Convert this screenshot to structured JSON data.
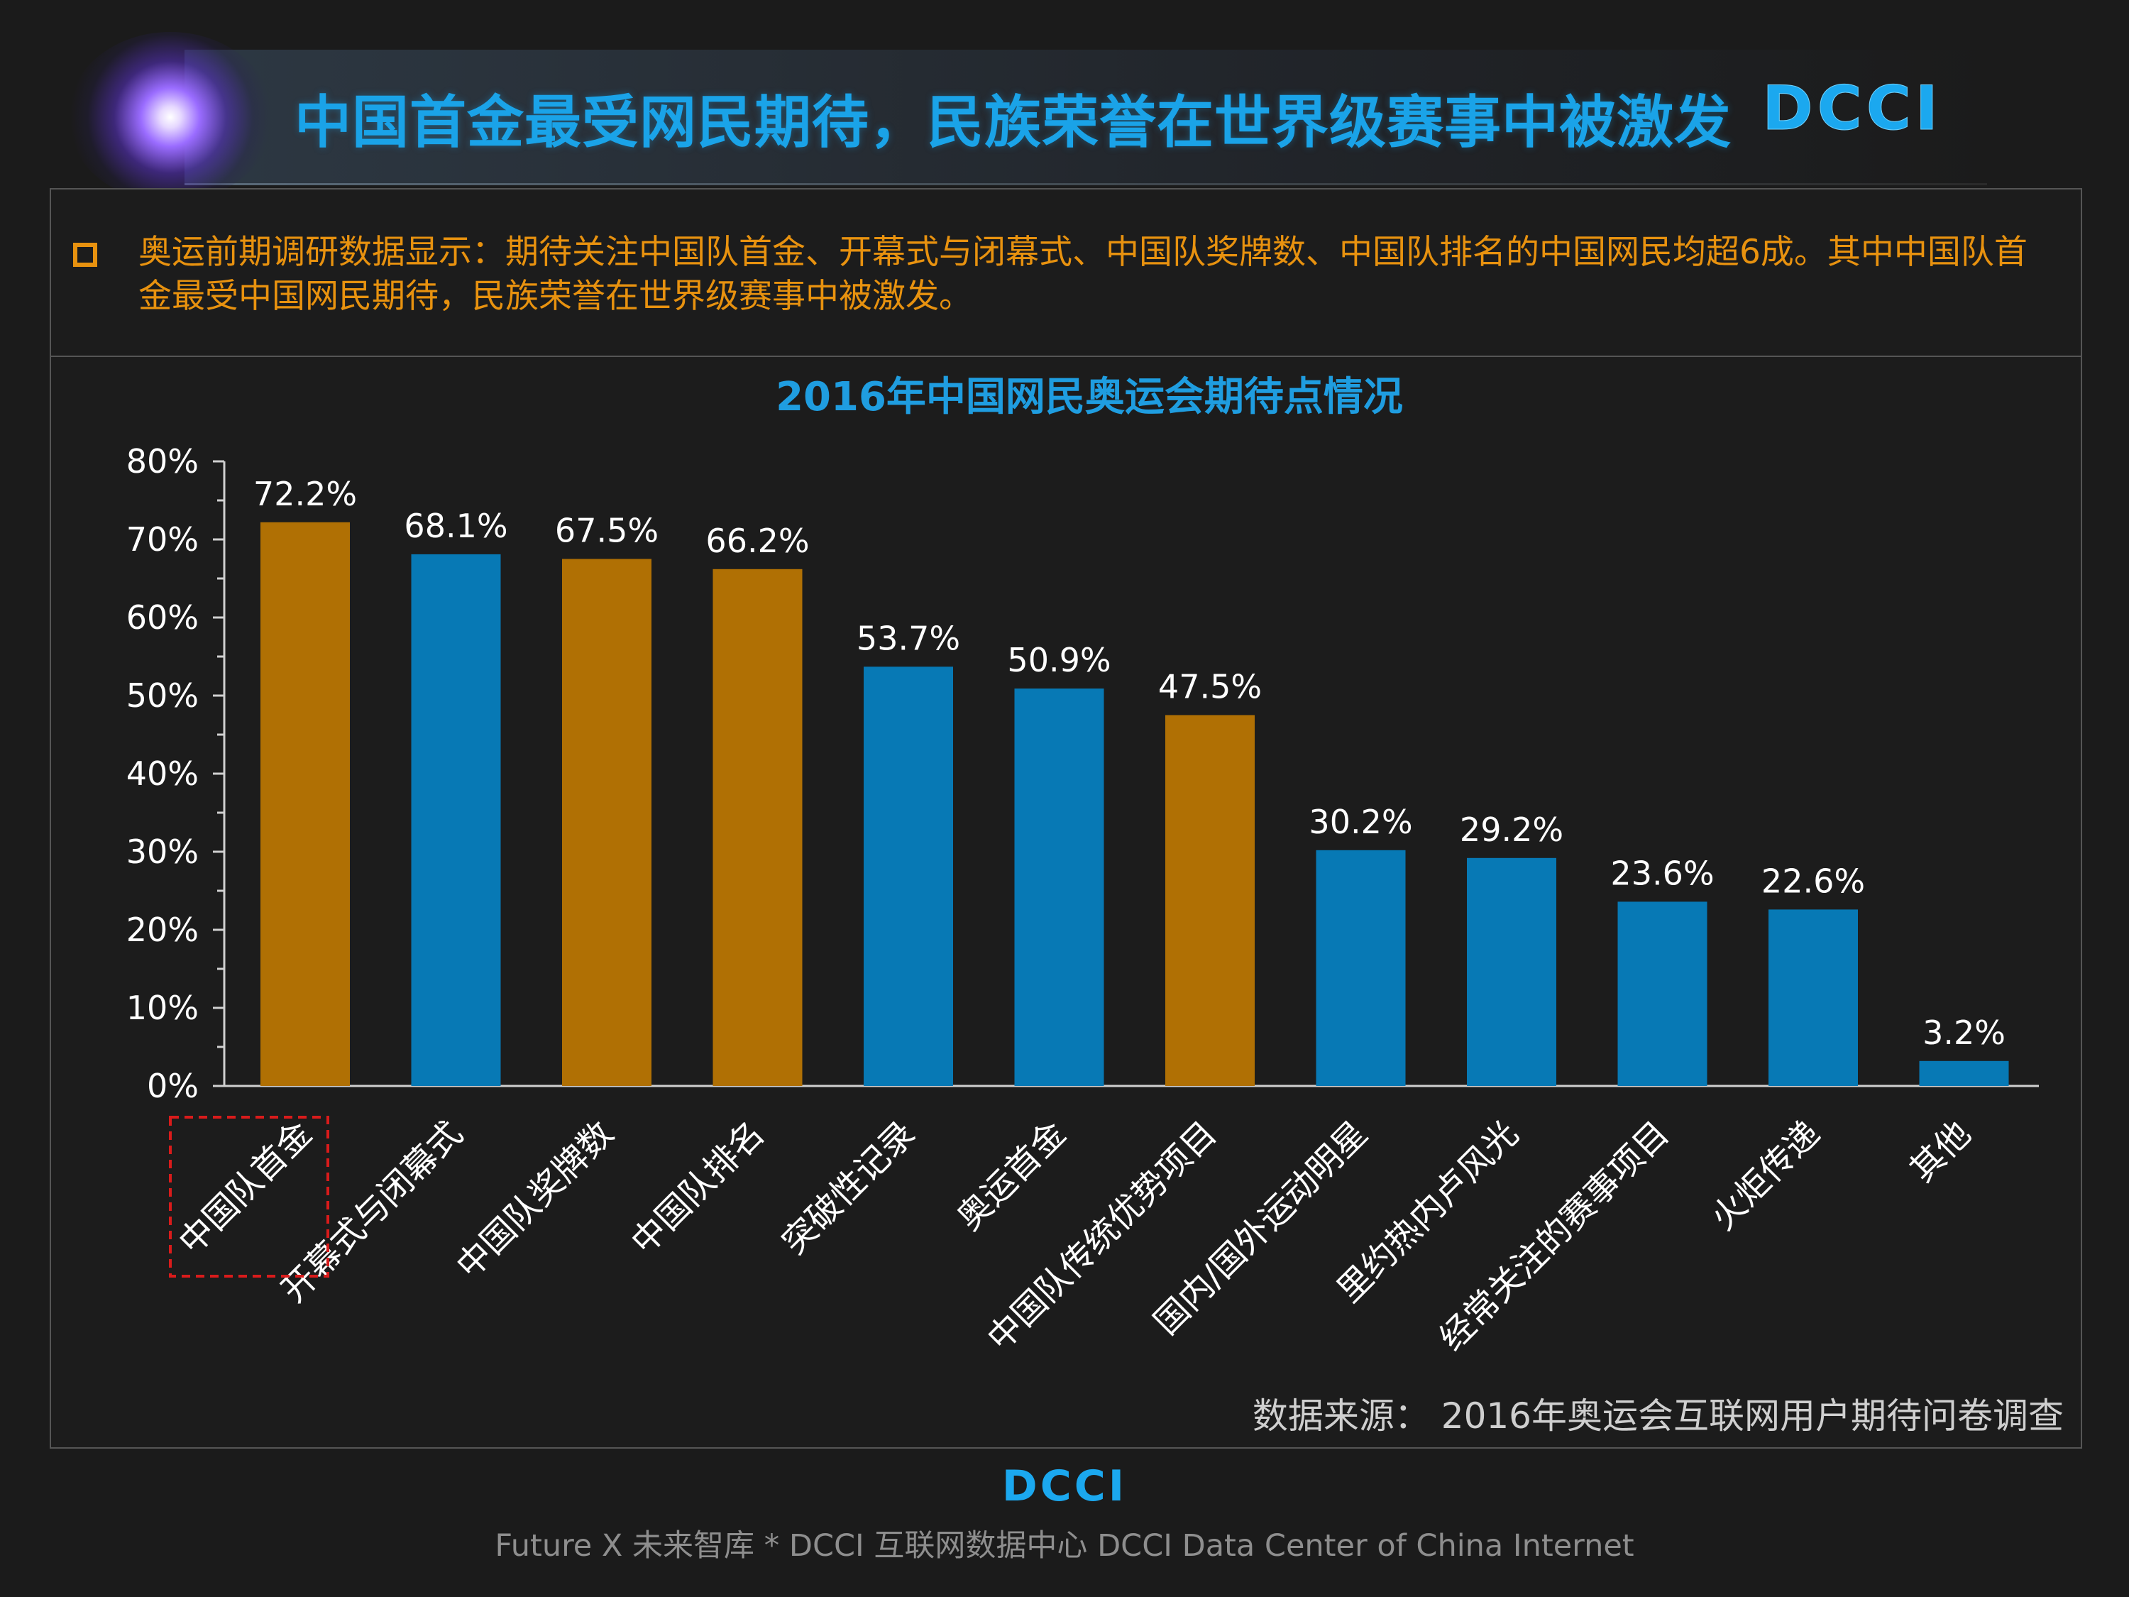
{
  "header": {
    "title": "中国首金最受网民期待，民族荣誉在世界级赛事中被激发",
    "brand": "DCCI"
  },
  "summary": {
    "text": "奥运前期调研数据显示：期待关注中国队首金、开幕式与闭幕式、中国队奖牌数、中国队排名的中国网民均超6成。其中中国队首金最受中国网民期待，民族荣誉在世界级赛事中被激发。"
  },
  "colors": {
    "gold": "#b07004",
    "blue": "#0779b5",
    "accent": "#1f9de0",
    "highlight": "#e8920f"
  },
  "chart_data": {
    "type": "bar",
    "title": "2016年中国网民奥运会期待点情况",
    "categories": [
      "中国队首金",
      "开幕式与闭幕式",
      "中国队奖牌数",
      "中国队排名",
      "突破性记录",
      "奥运首金",
      "中国队传统优势项目",
      "国内/国外运动明星",
      "里约热内卢风光",
      "经常关注的赛事项目",
      "火炬传递",
      "其他"
    ],
    "values": [
      72.2,
      68.1,
      67.5,
      66.2,
      53.7,
      50.9,
      47.5,
      30.2,
      29.2,
      23.6,
      22.6,
      3.2
    ],
    "value_labels": [
      "72.2%",
      "68.1%",
      "67.5%",
      "66.2%",
      "53.7%",
      "50.9%",
      "47.5%",
      "30.2%",
      "29.2%",
      "23.6%",
      "22.6%",
      "3.2%"
    ],
    "bar_colors": [
      "gold",
      "blue",
      "gold",
      "gold",
      "blue",
      "blue",
      "gold",
      "blue",
      "blue",
      "blue",
      "blue",
      "blue"
    ],
    "yticks": [
      "0%",
      "10%",
      "20%",
      "30%",
      "40%",
      "50%",
      "60%",
      "70%",
      "80%"
    ],
    "ylim": [
      0,
      80
    ],
    "highlighted_category": "中国队首金",
    "grid": false
  },
  "source": "数据来源：  2016年奥运会互联网用户期待问卷调查",
  "footer": {
    "brand": "DCCI",
    "text": "Future X 未来智库 * DCCI 互联网数据中心 DCCI Data Center of China Internet"
  }
}
